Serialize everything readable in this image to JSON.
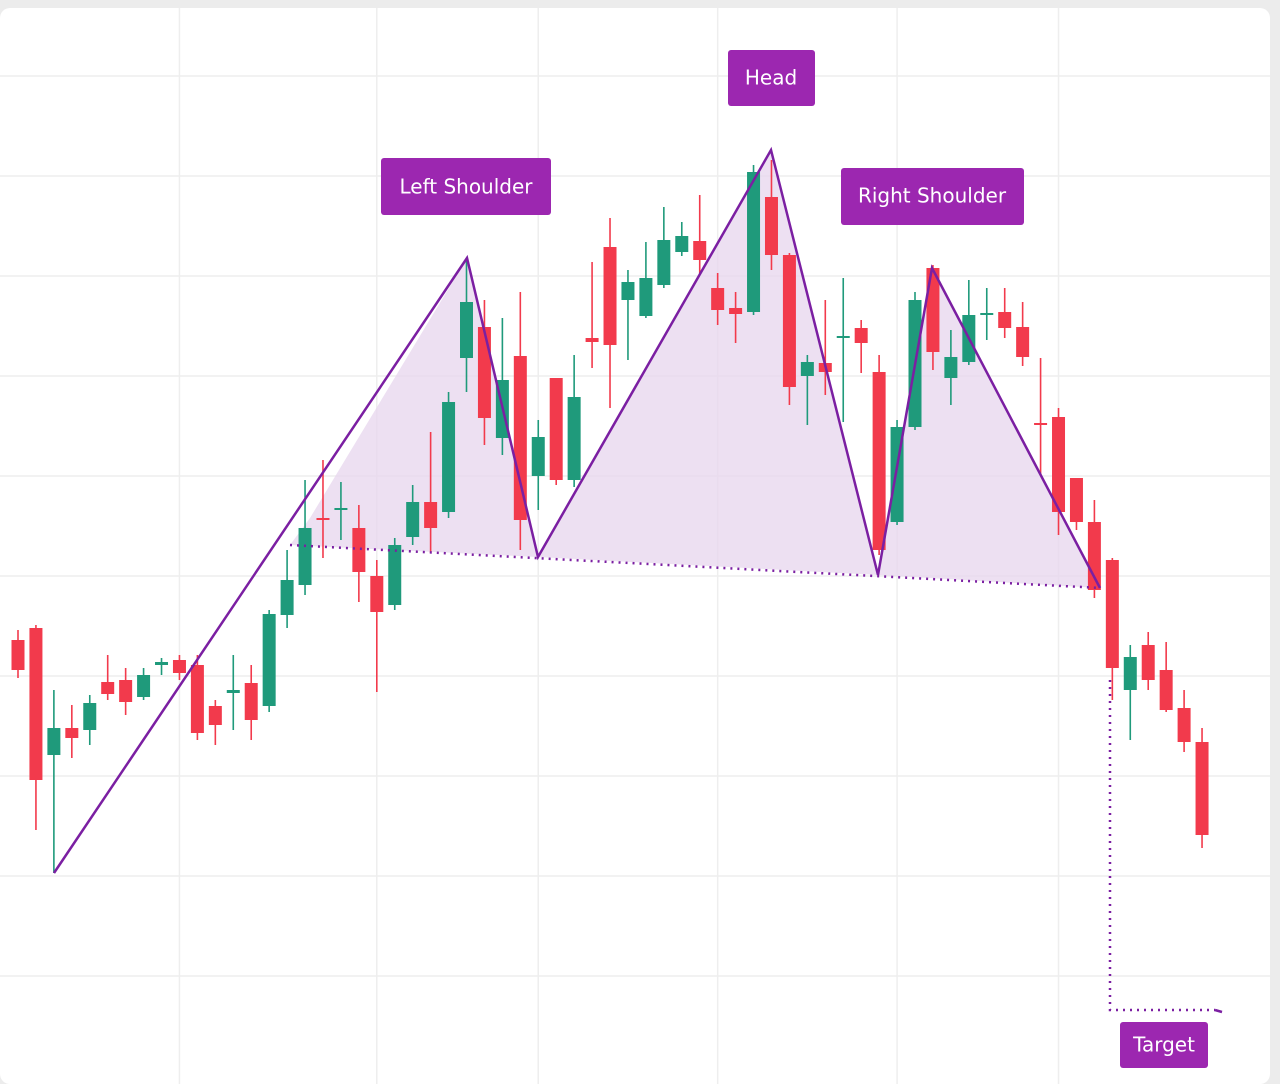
{
  "chart_data": {
    "type": "candlestick",
    "categories": [
      null,
      null,
      null,
      null,
      null,
      null,
      null,
      null,
      null,
      null,
      null,
      null,
      null,
      null,
      null,
      null,
      null,
      null,
      null,
      null,
      null,
      null,
      null,
      null,
      null,
      null,
      null,
      null,
      null,
      null,
      null,
      null,
      null,
      null,
      null,
      null,
      null,
      null,
      null,
      null,
      null,
      null,
      null,
      null,
      null,
      null,
      null,
      null,
      null,
      null,
      null,
      null,
      null,
      null,
      null,
      null,
      null,
      null,
      null,
      null,
      null,
      null,
      null,
      null,
      null,
      null,
      null
    ],
    "open": [
      44.4,
      45.6,
      32.9,
      35.6,
      35.4,
      40.2,
      40.4,
      38.7,
      41.9,
      42.4,
      41.9,
      37.8,
      39.1,
      40.1,
      37.8,
      46.9,
      49.9,
      56.6,
      57.4,
      55.6,
      50.8,
      47.9,
      54.7,
      58.2,
      57.2,
      72.6,
      75.7,
      64.6,
      72.8,
      60.8,
      70.6,
      60.4,
      74.6,
      83.7,
      78.4,
      76.8,
      79.9,
      83.2,
      84.3,
      79.6,
      77.6,
      77.2,
      88.7,
      82.9,
      70.8,
      72.1,
      74.7,
      75.6,
      71.2,
      56.2,
      65.7,
      81.6,
      70.6,
      72.2,
      76.9,
      77.2,
      75.7,
      66.1,
      66.7,
      60.6,
      56.2,
      52.4,
      39.4,
      43.9,
      41.4,
      37.6,
      34.2
    ],
    "high": [
      45.4,
      45.9,
      39.4,
      37.9,
      38.9,
      42.9,
      41.6,
      41.6,
      42.6,
      42.9,
      42.9,
      38.4,
      42.9,
      41.9,
      47.4,
      53.4,
      60.4,
      62.4,
      60.2,
      57.9,
      52.4,
      54.6,
      59.9,
      65.2,
      69.2,
      82.4,
      78.4,
      76.6,
      79.2,
      66.4,
      70.6,
      72.9,
      82.2,
      86.6,
      81.4,
      84.2,
      87.7,
      86.2,
      88.9,
      81.1,
      79.2,
      91.9,
      92.4,
      83.1,
      72.9,
      78.4,
      80.6,
      76.4,
      72.9,
      66.4,
      79.2,
      81.9,
      75.4,
      80.4,
      79.6,
      79.6,
      78.2,
      72.6,
      67.6,
      60.6,
      58.4,
      52.6,
      43.9,
      45.2,
      44.2,
      39.4,
      35.6
    ],
    "low": [
      40.6,
      25.4,
      21.1,
      32.6,
      33.9,
      38.4,
      36.9,
      38.4,
      40.9,
      40.4,
      34.4,
      33.9,
      35.4,
      34.4,
      37.2,
      45.6,
      48.9,
      52.6,
      54.4,
      48.2,
      39.2,
      47.4,
      53.9,
      53.1,
      56.6,
      69.2,
      63.9,
      62.9,
      53.4,
      57.4,
      59.9,
      59.7,
      71.6,
      67.6,
      72.4,
      76.6,
      79.6,
      82.8,
      80.9,
      75.9,
      74.1,
      76.9,
      81.4,
      67.9,
      65.9,
      68.9,
      66.2,
      71.1,
      52.9,
      55.9,
      65.4,
      71.4,
      67.9,
      71.9,
      74.4,
      74.6,
      71.8,
      60.9,
      54.9,
      55.4,
      48.6,
      38.4,
      34.4,
      39.4,
      37.2,
      33.2,
      23.6
    ],
    "close": [
      41.4,
      30.4,
      35.6,
      34.6,
      38.1,
      39.0,
      38.2,
      40.9,
      42.2,
      41.1,
      35.1,
      35.9,
      39.4,
      36.4,
      47.0,
      50.4,
      55.6,
      56.4,
      57.6,
      51.2,
      47.2,
      53.9,
      58.2,
      55.6,
      68.2,
      78.2,
      66.6,
      70.4,
      56.4,
      64.7,
      60.4,
      68.7,
      74.2,
      73.9,
      80.2,
      80.6,
      84.4,
      84.8,
      82.4,
      77.4,
      77.0,
      91.2,
      82.9,
      69.7,
      72.2,
      71.2,
      74.8,
      74.1,
      53.4,
      65.7,
      78.4,
      73.2,
      72.7,
      76.9,
      77.1,
      75.6,
      72.7,
      65.9,
      57.2,
      56.2,
      49.4,
      41.6,
      42.7,
      40.4,
      37.4,
      34.2,
      24.9
    ],
    "up_color": "#1f9a7b",
    "down_color": "#f23a4c",
    "ylim": [
      0,
      108.4
    ],
    "yticks": [
      10.8,
      20.8,
      30.8,
      40.8,
      50.8,
      60.8,
      70.8,
      80.8,
      90.8,
      100.8
    ],
    "xticks": [
      9,
      20,
      29,
      39,
      49,
      58
    ],
    "grid": true,
    "annotations": [
      "Left Shoulder",
      "Head",
      "Right Shoulder",
      "Target"
    ]
  }
}
